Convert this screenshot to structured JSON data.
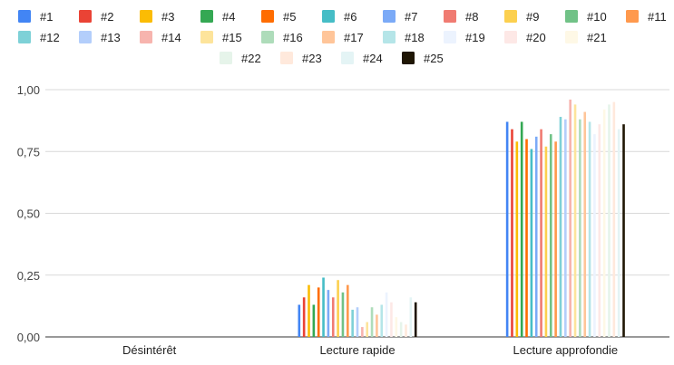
{
  "chart_data": {
    "type": "bar",
    "title": "",
    "xlabel": "",
    "ylabel": "",
    "categories": [
      "Désintérêt",
      "Lecture rapide",
      "Lecture approfondie"
    ],
    "ylim": [
      0,
      1
    ],
    "yticks": [
      "0,00",
      "0,25",
      "0,50",
      "0,75",
      "1,00"
    ],
    "grid": true,
    "legend": "top",
    "series": [
      {
        "name": "#1",
        "color": "#4285F4",
        "values": [
          0,
          0.13,
          0.87
        ]
      },
      {
        "name": "#2",
        "color": "#EA4335",
        "values": [
          0,
          0.16,
          0.84
        ]
      },
      {
        "name": "#3",
        "color": "#FBBC04",
        "values": [
          0,
          0.21,
          0.79
        ]
      },
      {
        "name": "#4",
        "color": "#34A853",
        "values": [
          0,
          0.13,
          0.87
        ]
      },
      {
        "name": "#5",
        "color": "#FF6D01",
        "values": [
          0,
          0.2,
          0.8
        ]
      },
      {
        "name": "#6",
        "color": "#46BDC6",
        "values": [
          0,
          0.24,
          0.76
        ]
      },
      {
        "name": "#7",
        "color": "#7BAAF7",
        "values": [
          0,
          0.19,
          0.81
        ]
      },
      {
        "name": "#8",
        "color": "#F07B72",
        "values": [
          0,
          0.16,
          0.84
        ]
      },
      {
        "name": "#9",
        "color": "#FCD04F",
        "values": [
          0,
          0.23,
          0.77
        ]
      },
      {
        "name": "#10",
        "color": "#71C287",
        "values": [
          0,
          0.18,
          0.82
        ]
      },
      {
        "name": "#11",
        "color": "#FF994D",
        "values": [
          0,
          0.21,
          0.79
        ]
      },
      {
        "name": "#12",
        "color": "#7ED1D7",
        "values": [
          0,
          0.11,
          0.89
        ]
      },
      {
        "name": "#13",
        "color": "#B3CEFB",
        "values": [
          0,
          0.12,
          0.88
        ]
      },
      {
        "name": "#14",
        "color": "#F7B4AE",
        "values": [
          0,
          0.04,
          0.96
        ]
      },
      {
        "name": "#15",
        "color": "#FDE49B",
        "values": [
          0,
          0.06,
          0.94
        ]
      },
      {
        "name": "#16",
        "color": "#AEDCBA",
        "values": [
          0,
          0.12,
          0.88
        ]
      },
      {
        "name": "#17",
        "color": "#FFC599",
        "values": [
          0,
          0.09,
          0.91
        ]
      },
      {
        "name": "#18",
        "color": "#B5E5E8",
        "values": [
          0,
          0.13,
          0.87
        ]
      },
      {
        "name": "#19",
        "color": "#ECF3FE",
        "values": [
          0,
          0.18,
          0.82
        ]
      },
      {
        "name": "#20",
        "color": "#FDE8E6",
        "values": [
          0,
          0.14,
          0.86
        ]
      },
      {
        "name": "#21",
        "color": "#FEF8E6",
        "values": [
          0,
          0.08,
          0.92
        ]
      },
      {
        "name": "#22",
        "color": "#E6F4EA",
        "values": [
          0,
          0.06,
          0.94
        ]
      },
      {
        "name": "#23",
        "color": "#FFE9DC",
        "values": [
          0,
          0.05,
          0.95
        ]
      },
      {
        "name": "#24",
        "color": "#E4F4F5",
        "values": [
          0,
          0.16,
          0.84
        ]
      },
      {
        "name": "#25",
        "color": "#1F1604",
        "values": [
          0,
          0.14,
          0.86
        ]
      }
    ]
  }
}
